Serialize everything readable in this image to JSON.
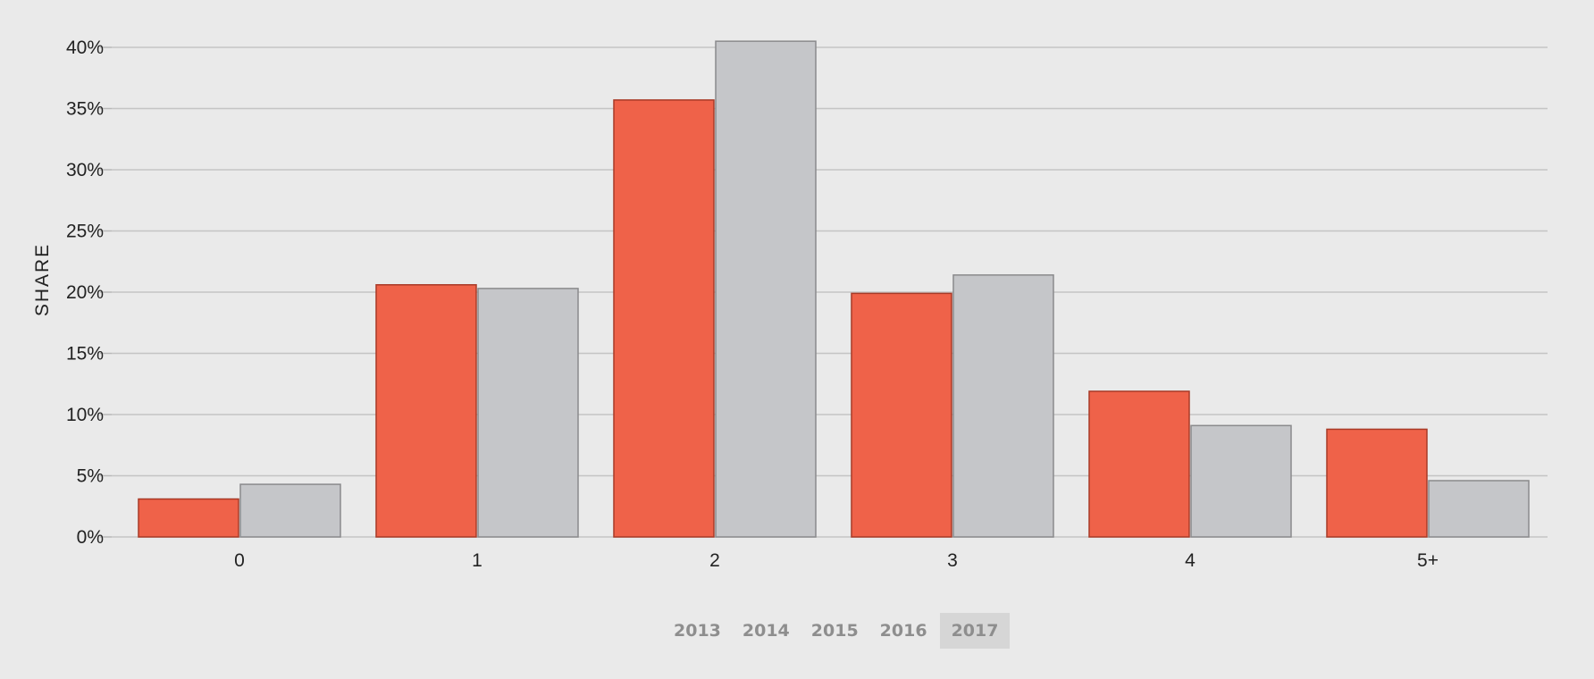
{
  "chart_data": {
    "type": "bar",
    "ylabel": "SHARE",
    "xlabel": "",
    "categories": [
      "0",
      "1",
      "2",
      "3",
      "4",
      "5+"
    ],
    "series": [
      {
        "values": [
          3.1,
          20.6,
          35.7,
          19.9,
          11.9,
          8.8
        ],
        "color": "#ef6249"
      },
      {
        "values": [
          4.3,
          20.3,
          40.5,
          21.4,
          9.1,
          4.6
        ],
        "color": "#c5c6c9"
      }
    ],
    "ylim": [
      0,
      40
    ],
    "yticks": [
      0,
      5,
      10,
      15,
      20,
      25,
      30,
      35,
      40
    ],
    "ytick_labels": [
      "0%",
      "5%",
      "10%",
      "15%",
      "20%",
      "25%",
      "30%",
      "35%",
      "40%"
    ],
    "grid": true
  },
  "year_selector": {
    "years": [
      "2013",
      "2014",
      "2015",
      "2016",
      "2017"
    ],
    "selected": "2017"
  }
}
